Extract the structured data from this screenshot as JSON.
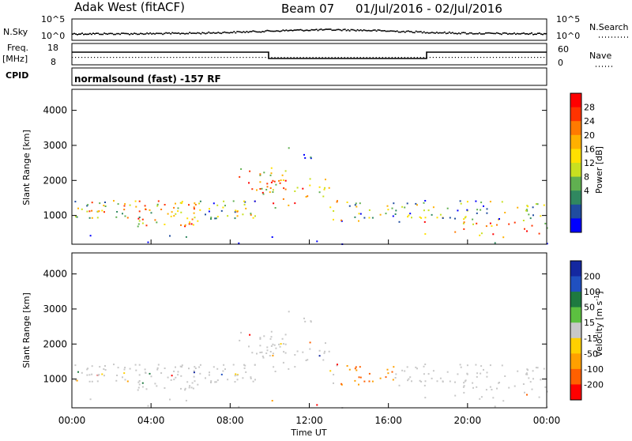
{
  "header": {
    "site": "Adak West (fitACF)",
    "beam": "Beam 07",
    "date_range": "01/Jul/2016 - 02/Jul/2016"
  },
  "panels": {
    "nsky": {
      "left_label": "N.Sky",
      "right_label": "N.Search",
      "ticks": [
        "10^5",
        "10^0"
      ],
      "right_ticks": [
        "10^5",
        "10^0"
      ]
    },
    "freq": {
      "left_label": "Freq.",
      "unit": "[MHz]",
      "cpid_label": "CPID",
      "left_ticks": [
        "18",
        "8"
      ],
      "right_label": "Nave",
      "right_ticks": [
        "60",
        "0"
      ]
    },
    "cpid_text": "normalsound (fast) -157 RF"
  },
  "chart_data": [
    {
      "type": "heatmap",
      "quantity": "Power",
      "ylabel": "Slant Range [km]",
      "yticks": [
        1000,
        2000,
        3000,
        4000
      ],
      "ylim": [
        180,
        4600
      ],
      "xlim_hours": [
        0,
        24
      ],
      "colorbar": {
        "label": "Power [dB]",
        "ticks": [
          "28",
          "24",
          "20",
          "16",
          "12",
          "8",
          "4"
        ],
        "colors": [
          "#ff0000",
          "#ff3300",
          "#ff7a00",
          "#ffb000",
          "#ffe000",
          "#c8e020",
          "#60b050",
          "#308860",
          "#204ca0",
          "#0000ff"
        ]
      }
    },
    {
      "type": "heatmap",
      "quantity": "Velocity",
      "ylabel": "Slant Range [km]",
      "yticks": [
        1000,
        2000,
        3000,
        4000
      ],
      "ylim": [
        180,
        4600
      ],
      "xlim_hours": [
        0,
        24
      ],
      "xtick_labels": [
        "00:00",
        "04:00",
        "08:00",
        "12:00",
        "16:00",
        "20:00",
        "00:00"
      ],
      "xlabel": "Time UT",
      "colorbar": {
        "label": "Velocity [m s^-1]",
        "ticks": [
          "200",
          "100",
          "50",
          "15",
          "-15",
          "-50",
          "-100",
          "-200"
        ],
        "colors": [
          "#1428a0",
          "#2050c0",
          "#1e7a40",
          "#5cc040",
          "#c8c8c8",
          "#ffd000",
          "#ffa000",
          "#ff6000",
          "#ff0000"
        ]
      }
    }
  ]
}
